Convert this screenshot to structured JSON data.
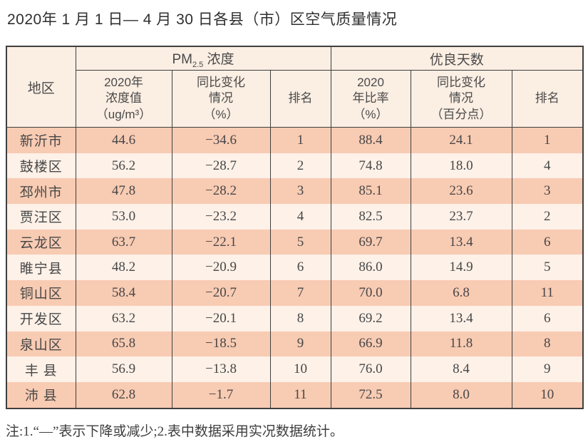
{
  "title": "2020年 1 月 1 日— 4 月 30 日各县（市）区空气质量情况",
  "footnote": "注:1.“—”表示下降或减少;2.表中数据采用实况数据统计。",
  "colors": {
    "row_odd": "#f8cbb3",
    "row_even": "#fdf1e8",
    "header_bg": "#fbeee3",
    "border": "#3f3f3f",
    "text": "#4a4a4a"
  },
  "table": {
    "corner_header": "地区",
    "group_headers": [
      {
        "prefix": "PM",
        "sub": "2.5",
        "suffix": " 浓度"
      },
      {
        "label": "优良天数"
      }
    ],
    "sub_headers": [
      {
        "key": "pm25-value-2020",
        "lines": [
          "2020年",
          "浓度值",
          "（ug/m³）"
        ]
      },
      {
        "key": "pm25-yoy-change",
        "lines": [
          "同比变化",
          "情况",
          "（%）"
        ]
      },
      {
        "key": "pm25-rank",
        "lines": [
          "排名"
        ]
      },
      {
        "key": "gooddays-ratio-2020",
        "lines": [
          "2020",
          "年比率",
          "（%）"
        ]
      },
      {
        "key": "gooddays-yoy-change",
        "lines": [
          "同比变化",
          "情况",
          "（百分点）"
        ]
      },
      {
        "key": "gooddays-rank",
        "lines": [
          "排名"
        ]
      }
    ],
    "rows": [
      [
        "新沂市",
        "44.6",
        "−34.6",
        "1",
        "88.4",
        "24.1",
        "1"
      ],
      [
        "鼓楼区",
        "56.2",
        "−28.7",
        "2",
        "74.8",
        "18.0",
        "4"
      ],
      [
        "邳州市",
        "47.8",
        "−28.2",
        "3",
        "85.1",
        "23.6",
        "3"
      ],
      [
        "贾汪区",
        "53.0",
        "−23.2",
        "4",
        "82.5",
        "23.7",
        "2"
      ],
      [
        "云龙区",
        "63.7",
        "−22.1",
        "5",
        "69.7",
        "13.4",
        "6"
      ],
      [
        "睢宁县",
        "48.2",
        "−20.9",
        "6",
        "86.0",
        "14.9",
        "5"
      ],
      [
        "铜山区",
        "58.4",
        "−20.7",
        "7",
        "70.0",
        "6.8",
        "11"
      ],
      [
        "开发区",
        "63.2",
        "−20.1",
        "8",
        "69.2",
        "13.4",
        "6"
      ],
      [
        "泉山区",
        "65.8",
        "−18.5",
        "9",
        "66.9",
        "11.8",
        "8"
      ],
      [
        "丰 县",
        "56.9",
        "−13.8",
        "10",
        "76.0",
        "8.4",
        "9"
      ],
      [
        "沛 县",
        "62.8",
        "−1.7",
        "11",
        "72.5",
        "8.0",
        "10"
      ]
    ]
  },
  "chart_data": {
    "type": "table",
    "title": "2020年1月1日—4月30日各县（市）区空气质量情况",
    "columns": [
      "地区",
      "PM2.5浓度 2020年浓度值（ug/m³）",
      "PM2.5浓度 同比变化情况（%）",
      "PM2.5浓度 排名",
      "优良天数 2020年比率（%）",
      "优良天数 同比变化情况（百分点）",
      "优良天数 排名"
    ],
    "rows": [
      [
        "新沂市",
        44.6,
        -34.6,
        1,
        88.4,
        24.1,
        1
      ],
      [
        "鼓楼区",
        56.2,
        -28.7,
        2,
        74.8,
        18.0,
        4
      ],
      [
        "邳州市",
        47.8,
        -28.2,
        3,
        85.1,
        23.6,
        3
      ],
      [
        "贾汪区",
        53.0,
        -23.2,
        4,
        82.5,
        23.7,
        2
      ],
      [
        "云龙区",
        63.7,
        -22.1,
        5,
        69.7,
        13.4,
        6
      ],
      [
        "睢宁县",
        48.2,
        -20.9,
        6,
        86.0,
        14.9,
        5
      ],
      [
        "铜山区",
        58.4,
        -20.7,
        7,
        70.0,
        6.8,
        11
      ],
      [
        "开发区",
        63.2,
        -20.1,
        8,
        69.2,
        13.4,
        6
      ],
      [
        "泉山区",
        65.8,
        -18.5,
        9,
        66.9,
        11.8,
        8
      ],
      [
        "丰县",
        56.9,
        -13.8,
        10,
        76.0,
        8.4,
        9
      ],
      [
        "沛县",
        62.8,
        -1.7,
        11,
        72.5,
        8.0,
        10
      ]
    ],
    "footnote": "注:1.“—”表示下降或减少;2.表中数据采用实况数据统计。"
  }
}
